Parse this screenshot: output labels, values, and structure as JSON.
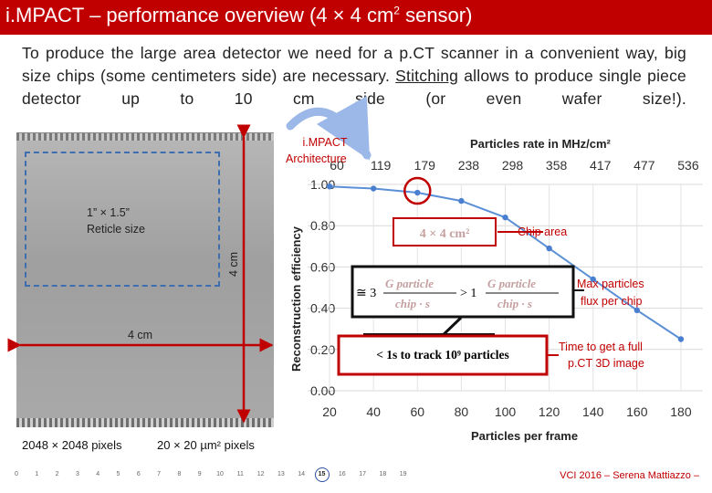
{
  "slide": {
    "title_main": "i.MPACT – performance overview (4 × 4 cm",
    "title_sup": "2",
    "title_end": " sensor)",
    "text_before": "To produce the large area detector we need for a p.CT scanner in a convenient way, big size chips (some centimeters side) are necessary. ",
    "text_link": "Stitching",
    "text_after": " allows to produce single piece detector up to 10 cm side (or even wafer size!).",
    "colors": {
      "title_bg": "#c00000",
      "accent": "#c00000",
      "reticle": "#3d6fb0",
      "curve": "#5b8fd6"
    }
  },
  "left": {
    "reticle_label_1": "1” × 1.5”",
    "reticle_label_2": "Reticle size",
    "height_label": "4 cm",
    "width_label": "4 cm",
    "pixels_label": "2048 × 2048 pixels",
    "pixel_size_label": "20 × 20 µm² pixels"
  },
  "right": {
    "architecture_1": "i.MPACT",
    "architecture_2": "Architecture",
    "chip_area_box": "4 × 4 cm²",
    "chip_area_label": "Chip area",
    "max_label_1": "Max particles",
    "max_label_2": "flux per chip",
    "time_label_1": "Time to get a full",
    "time_label_2": "p.CT 3D image",
    "formula_approx": "≅ 3",
    "formula_gt": "> 1",
    "formula_num": "G particle",
    "formula_den": "chip · s",
    "time_box": "< 1s to track 10⁹ particles"
  },
  "chart_data": {
    "type": "line",
    "title": "Particles rate in MHz/cm²",
    "xlabel": "Particles per frame",
    "ylabel": "Reconstruction efficiency",
    "x": [
      20,
      40,
      60,
      80,
      100,
      120,
      140,
      160,
      180
    ],
    "x_tick_labels": [
      "20",
      "40",
      "60",
      "80",
      "100",
      "120",
      "140",
      "160",
      "180"
    ],
    "top_tick_labels": [
      "60",
      "119",
      "179",
      "238",
      "298",
      "358",
      "417",
      "477",
      "536"
    ],
    "y_tick_labels": [
      "1.00",
      "0.80",
      "0.60",
      "0.40",
      "0.20",
      "0.00"
    ],
    "ylim": [
      0,
      1
    ],
    "series": [
      {
        "values": [
          0.99,
          0.98,
          0.96,
          0.92,
          0.84,
          0.69,
          0.54,
          0.39,
          0.25
        ]
      }
    ],
    "highlight_x": 60,
    "grid": true
  },
  "footer": {
    "pages": [
      "0",
      "1",
      "2",
      "3",
      "4",
      "5",
      "6",
      "7",
      "8",
      "9",
      "10",
      "11",
      "12",
      "13",
      "14",
      "15",
      "16",
      "17",
      "18",
      "19"
    ],
    "current": "15",
    "credit": "VCI 2016 – Serena Mattiazzo –"
  }
}
